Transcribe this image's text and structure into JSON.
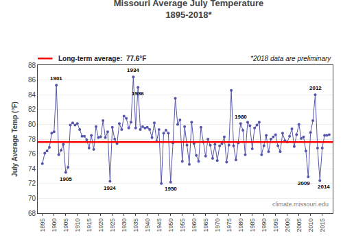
{
  "chart_data": {
    "type": "line",
    "title": "Missouri Average July Temperature\n1895-2018*",
    "ylabel": "July Average Temp (°F)",
    "x": [
      1895,
      1896,
      1897,
      1898,
      1899,
      1900,
      1901,
      1902,
      1903,
      1904,
      1905,
      1906,
      1907,
      1908,
      1909,
      1910,
      1911,
      1912,
      1913,
      1914,
      1915,
      1916,
      1917,
      1918,
      1919,
      1920,
      1921,
      1922,
      1923,
      1924,
      1925,
      1926,
      1927,
      1928,
      1929,
      1930,
      1931,
      1932,
      1933,
      1934,
      1935,
      1936,
      1937,
      1938,
      1939,
      1940,
      1941,
      1942,
      1943,
      1944,
      1945,
      1946,
      1947,
      1948,
      1949,
      1950,
      1951,
      1952,
      1953,
      1954,
      1955,
      1956,
      1957,
      1958,
      1959,
      1960,
      1961,
      1962,
      1963,
      1964,
      1965,
      1966,
      1967,
      1968,
      1969,
      1970,
      1971,
      1972,
      1973,
      1974,
      1975,
      1976,
      1977,
      1978,
      1979,
      1980,
      1981,
      1982,
      1983,
      1984,
      1985,
      1986,
      1987,
      1988,
      1989,
      1990,
      1991,
      1992,
      1993,
      1994,
      1995,
      1996,
      1997,
      1998,
      1999,
      2000,
      2001,
      2002,
      2003,
      2004,
      2005,
      2006,
      2007,
      2008,
      2009,
      2010,
      2011,
      2012,
      2013,
      2014,
      2015,
      2016,
      2017,
      2018
    ],
    "values": [
      74.7,
      76.1,
      76.4,
      76.9,
      78.8,
      79.0,
      85.3,
      75.9,
      76.5,
      77.3,
      73.5,
      74.2,
      79.9,
      80.2,
      79.9,
      80.1,
      79.3,
      78.4,
      78.4,
      77.9,
      76.8,
      78.5,
      76.6,
      79.7,
      78.2,
      78.3,
      80.5,
      78.2,
      79.0,
      72.3,
      79.6,
      78.0,
      77.4,
      80.1,
      79.3,
      81.1,
      80.8,
      79.5,
      80.3,
      86.4,
      79.5,
      85.0,
      79.3,
      79.7,
      79.5,
      79.6,
      79.3,
      78.2,
      80.2,
      77.7,
      79.3,
      72.0,
      78.8,
      79.2,
      78.8,
      72.2,
      77.5,
      83.5,
      80.0,
      80.6,
      75.0,
      79.7,
      77.2,
      74.6,
      80.3,
      77.4,
      75.8,
      75.0,
      79.6,
      77.6,
      75.7,
      78.0,
      77.2,
      75.4,
      77.3,
      75.1,
      77.1,
      77.4,
      78.3,
      74.9,
      77.2,
      84.6,
      77.1,
      75.2,
      77.5,
      80.1,
      79.2,
      75.9,
      80.3,
      79.8,
      76.7,
      79.5,
      79.9,
      80.3,
      75.9,
      77.1,
      78.5,
      76.3,
      78.0,
      78.3,
      78.6,
      77.1,
      76.3,
      78.8,
      77.8,
      77.6,
      78.4,
      79.4,
      77.0,
      78.6,
      80.0,
      78.1,
      78.3,
      76.4,
      72.9,
      78.9,
      80.5,
      84.0,
      76.8,
      72.4,
      76.8,
      78.5,
      78.5,
      78.6
    ],
    "color": "#5555AA",
    "marker": "circle",
    "reference_line": {
      "y": 77.6,
      "label": "Long-term average:  77.6°F",
      "color": "#FF0000"
    },
    "annotations": [
      {
        "x": 1901,
        "y": 85.3,
        "text": "1901"
      },
      {
        "x": 1905,
        "y": 73.5,
        "text": "1905"
      },
      {
        "x": 1924,
        "y": 72.3,
        "text": "1924"
      },
      {
        "x": 1934,
        "y": 86.4,
        "text": "1934"
      },
      {
        "x": 1936,
        "y": 85.0,
        "text": "1936"
      },
      {
        "x": 1950,
        "y": 72.2,
        "text": "1950"
      },
      {
        "x": 1980,
        "y": 80.1,
        "text": "1980"
      },
      {
        "x": 2009,
        "y": 72.9,
        "text": "2009"
      },
      {
        "x": 2012,
        "y": 84.0,
        "text": "2012"
      },
      {
        "x": 2014,
        "y": 72.4,
        "text": "2014"
      }
    ],
    "note": "*2018 data are preliminary",
    "source": "climate.missouri.edu",
    "xlim": [
      1893,
      2019.5
    ],
    "xticks": [
      1895,
      1900,
      1905,
      1910,
      1915,
      1920,
      1925,
      1930,
      1935,
      1940,
      1945,
      1950,
      1955,
      1960,
      1965,
      1970,
      1975,
      1980,
      1985,
      1990,
      1995,
      2000,
      2005,
      2010,
      2015
    ],
    "ylim": [
      68,
      88
    ],
    "yticks": [
      68,
      70,
      72,
      74,
      76,
      78,
      80,
      82,
      84,
      86,
      88
    ],
    "grid": true
  }
}
